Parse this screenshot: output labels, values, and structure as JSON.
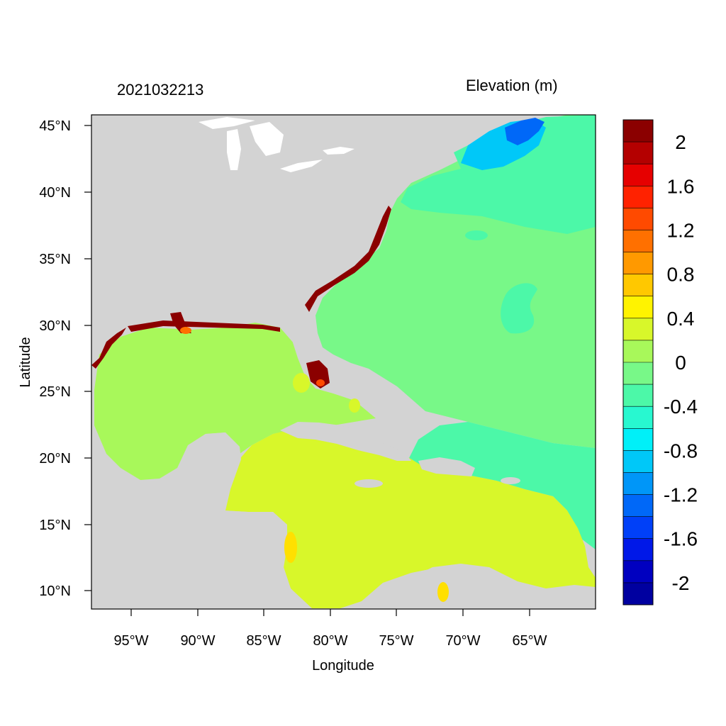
{
  "header": {
    "timestamp": "2021032213",
    "colorbar_title": "Elevation (m)"
  },
  "axes": {
    "xlabel": "Longitude",
    "ylabel": "Latitude",
    "x_ticks": [
      "95°W",
      "90°W",
      "85°W",
      "80°W",
      "75°W",
      "70°W",
      "65°W"
    ],
    "y_ticks": [
      "45°N",
      "40°N",
      "35°N",
      "30°N",
      "25°N",
      "20°N",
      "15°N",
      "10°N"
    ]
  },
  "colorbar": {
    "labels": [
      "2",
      "1.6",
      "1.2",
      "0.8",
      "0.4",
      "0",
      "-0.4",
      "-0.8",
      "-1.2",
      "-1.6",
      "-2"
    ],
    "colors": [
      "#8B0000",
      "#B40000",
      "#E60000",
      "#FF2200",
      "#FF4A00",
      "#FF7000",
      "#FF9900",
      "#FFC800",
      "#FFF300",
      "#D8F72A",
      "#A8F85A",
      "#78F888",
      "#4CF8A8",
      "#28F8D0",
      "#00F0F8",
      "#00C8F8",
      "#0096F8",
      "#0068F8",
      "#0040F8",
      "#0018E8",
      "#0000C0",
      "#0000A0"
    ]
  },
  "map_colors": {
    "land": "#D3D3D3",
    "lakes": "#FFFFFF",
    "gulf": "#A8F85A",
    "atlantic": "#78F888",
    "caribbean": "#D8F72A",
    "north_atlantic": "#4CF8A8",
    "gulf_of_maine": "#00C8F8",
    "bay_of_fundy": "#0068F8",
    "surge_high": "#8B0000"
  }
}
